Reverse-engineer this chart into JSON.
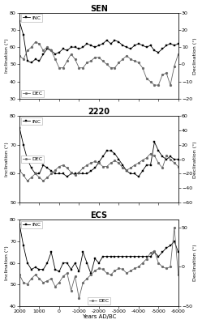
{
  "panels": [
    {
      "title": "SEN",
      "ylim_inc": [
        30,
        80
      ],
      "ylim_dec": [
        -20,
        30
      ],
      "yticks_inc": [
        30,
        40,
        50,
        60,
        70,
        80
      ],
      "yticks_dec": [
        -20,
        -10,
        0,
        10,
        20,
        30
      ],
      "inc_x": [
        2000,
        1800,
        1600,
        1400,
        1200,
        1000,
        800,
        600,
        400,
        200,
        0,
        -200,
        -400,
        -600,
        -800,
        -1000,
        -1200,
        -1400,
        -1600,
        -1800,
        -2000,
        -2200,
        -2400,
        -2600,
        -2800,
        -3000,
        -3200,
        -3400,
        -3600,
        -3800,
        -4000,
        -4200,
        -4400,
        -4600,
        -4800,
        -5000,
        -5200,
        -5400,
        -5600,
        -5800,
        -6000
      ],
      "inc_y": [
        75,
        67,
        52,
        51,
        53,
        52,
        56,
        59,
        58,
        56,
        57,
        59,
        58,
        60,
        60,
        59,
        60,
        62,
        61,
        60,
        61,
        62,
        64,
        62,
        64,
        63,
        61,
        60,
        59,
        61,
        62,
        61,
        60,
        61,
        58,
        57,
        59,
        61,
        62,
        61,
        62
      ],
      "dec_x": [
        2000,
        1800,
        1600,
        1400,
        1200,
        1000,
        800,
        600,
        400,
        200,
        0,
        -200,
        -400,
        -600,
        -800,
        -1000,
        -1200,
        -1400,
        -1600,
        -1800,
        -2000,
        -2200,
        -2400,
        -2600,
        -2800,
        -3000,
        -3200,
        -3400,
        -3600,
        -3800,
        -4000,
        -4200,
        -4400,
        -4600,
        -4800,
        -5000,
        -5200,
        -5400,
        -5600,
        -5800,
        -6000
      ],
      "dec_y": [
        5,
        3,
        8,
        10,
        13,
        12,
        8,
        10,
        8,
        3,
        -2,
        -2,
        2,
        6,
        3,
        -2,
        -2,
        1,
        2,
        4,
        4,
        2,
        0,
        -2,
        -2,
        1,
        3,
        5,
        3,
        2,
        1,
        -2,
        -8,
        -10,
        -12,
        -12,
        -6,
        -5,
        -12,
        -1,
        6
      ],
      "dec_legend_loc": "lower left"
    },
    {
      "title": "2220",
      "ylim_inc": [
        50,
        80
      ],
      "ylim_dec": [
        -60,
        60
      ],
      "yticks_inc": [
        50,
        60,
        70,
        80
      ],
      "yticks_dec": [
        -60,
        -40,
        -20,
        0,
        20,
        40,
        60
      ],
      "inc_x": [
        2000,
        1800,
        1600,
        1400,
        1200,
        1000,
        800,
        600,
        400,
        200,
        0,
        -200,
        -400,
        -600,
        -800,
        -1000,
        -1200,
        -1400,
        -1600,
        -1800,
        -2000,
        -2200,
        -2400,
        -2600,
        -2800,
        -3000,
        -3200,
        -3400,
        -3600,
        -3800,
        -4000,
        -4200,
        -4400,
        -4600,
        -4800,
        -5000,
        -5200,
        -5400,
        -5600,
        -5800,
        -6000
      ],
      "inc_y": [
        76,
        70,
        65,
        62,
        60,
        60,
        63,
        62,
        61,
        60,
        60,
        60,
        59,
        60,
        60,
        60,
        60,
        60,
        61,
        62,
        64,
        66,
        68,
        68,
        67,
        65,
        63,
        61,
        60,
        60,
        59,
        61,
        63,
        63,
        71,
        68,
        66,
        65,
        66,
        65,
        65
      ],
      "dec_x": [
        2000,
        1800,
        1600,
        1400,
        1200,
        1000,
        800,
        600,
        400,
        200,
        0,
        -200,
        -400,
        -600,
        -800,
        -1000,
        -1200,
        -1400,
        -1600,
        -1800,
        -2000,
        -2200,
        -2400,
        -2600,
        -2800,
        -3000,
        -3200,
        -3400,
        -3600,
        -3800,
        -4000,
        -4200,
        -4400,
        -4600,
        -4800,
        -5000,
        -5200,
        -5400,
        -5600,
        -5800,
        -6000
      ],
      "dec_y": [
        -15,
        -22,
        -30,
        -25,
        -20,
        -25,
        -30,
        -25,
        -20,
        -15,
        -10,
        -8,
        -12,
        -18,
        -22,
        -18,
        -12,
        -8,
        -5,
        -3,
        -5,
        -10,
        -10,
        -5,
        -2,
        -5,
        -12,
        -15,
        -12,
        -8,
        -5,
        -1,
        2,
        8,
        5,
        -5,
        -12,
        5,
        0,
        -5,
        -10
      ],
      "dec_legend_loc": "center left"
    },
    {
      "title": "ECS",
      "ylim_inc": [
        40,
        80
      ],
      "ylim_dec": [
        -50,
        60
      ],
      "yticks_inc": [
        40,
        50,
        60,
        70,
        80
      ],
      "yticks_dec": [
        -50,
        0,
        50
      ],
      "inc_x": [
        2000,
        1800,
        1600,
        1400,
        1200,
        1000,
        800,
        600,
        400,
        200,
        0,
        -200,
        -400,
        -600,
        -800,
        -1000,
        -1200,
        -1400,
        -1600,
        -1800,
        -2000,
        -2200,
        -2400,
        -2600,
        -2800,
        -3000,
        -3200,
        -3400,
        -3600,
        -3800,
        -4000,
        -4200,
        -4400,
        -4600,
        -4800,
        -5000,
        -5200,
        -5400,
        -5600,
        -5800,
        -6000
      ],
      "inc_y": [
        78,
        68,
        60,
        57,
        58,
        57,
        57,
        60,
        65,
        57,
        56,
        60,
        60,
        57,
        60,
        56,
        65,
        60,
        55,
        62,
        60,
        63,
        63,
        63,
        63,
        63,
        63,
        63,
        63,
        63,
        63,
        63,
        63,
        63,
        65,
        63,
        65,
        67,
        68,
        70,
        65
      ],
      "dec_x": [
        2000,
        1800,
        1600,
        1400,
        1200,
        1000,
        800,
        600,
        400,
        200,
        0,
        -200,
        -400,
        -600,
        -800,
        -1000,
        -1200,
        -1400,
        -1600,
        -1800,
        -2000,
        -2200,
        -2400,
        -2600,
        -2800,
        -3000,
        -3200,
        -3400,
        -3600,
        -3800,
        -4000,
        -4200,
        -4400,
        -4600,
        -4800,
        -5000,
        -5200,
        -5400,
        -5600,
        -5800,
        -6000
      ],
      "dec_y": [
        -10,
        -20,
        -22,
        -15,
        -10,
        -15,
        -20,
        -18,
        -15,
        -25,
        -20,
        -12,
        -8,
        -30,
        -12,
        -40,
        -20,
        -15,
        -10,
        -5,
        -2,
        -3,
        -8,
        -10,
        -5,
        -2,
        -3,
        -8,
        -5,
        -2,
        0,
        5,
        10,
        18,
        20,
        5,
        0,
        -2,
        0,
        50,
        -10
      ],
      "dec_legend_loc": "lower center"
    }
  ],
  "xlim": [
    2000,
    -6000
  ],
  "xticks": [
    2000,
    1000,
    0,
    -1000,
    -2000,
    -3000,
    -4000,
    -5000,
    -6000
  ],
  "xticklabels": [
    "2000",
    "1000",
    "0",
    "-1000",
    "-2000",
    "-3000",
    "-4000",
    "-5000",
    "-6000"
  ],
  "xlabel": "Years AD/BC",
  "color_inc": "#000000",
  "color_dec": "#666666",
  "marker_inc": "s",
  "marker_dec": "o",
  "markersize": 2.0,
  "linewidth": 0.6,
  "inc_label": "INC",
  "dec_label": "DEC"
}
